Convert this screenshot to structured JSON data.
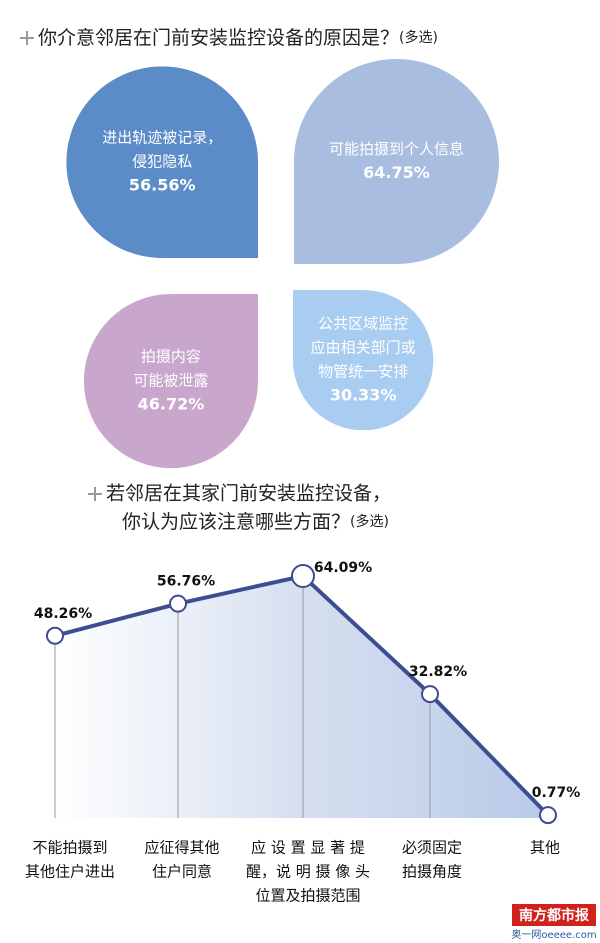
{
  "chart_data": [
    {
      "type": "leaf",
      "title": "你介意邻居在门前安装监控设备的原因是？",
      "title_note": "(多选)",
      "categories": [
        [
          "进出轨迹被记录，",
          "侵犯隐私"
        ],
        [
          "可能拍摄到个人信息"
        ],
        [
          "拍摄内容",
          "可能被泄露"
        ],
        [
          "公共区域监控",
          "应由相关部门或",
          "物管统一安排"
        ]
      ],
      "values": [
        56.56,
        64.75,
        46.72,
        30.33
      ],
      "value_labels": [
        "56.56%",
        "64.75%",
        "46.72%",
        "30.33%"
      ],
      "colors": [
        "#5b8cc8",
        "#a9bde0",
        "#c9a6cc",
        "#a8cdf0"
      ]
    },
    {
      "type": "line",
      "title": [
        "若邻居在其家门前安装监控设备，",
        "你认为应该注意哪些方面？"
      ],
      "title_note": "(多选)",
      "categories": [
        [
          "不能拍摄到",
          "其他住户进出"
        ],
        [
          "应征得其他",
          "住户同意"
        ],
        [
          "应 设 置 显 著 提",
          "醒，说 明 摄 像 头",
          "位置及拍摄范围"
        ],
        [
          "必须固定",
          "拍摄角度"
        ],
        [
          "其他"
        ]
      ],
      "values": [
        48.26,
        56.76,
        64.09,
        32.82,
        0.77
      ],
      "value_labels": [
        "48.26%",
        "56.76%",
        "64.09%",
        "32.82%",
        "0.77%"
      ],
      "color": "#3c4e90"
    }
  ],
  "footer": {
    "brand": "南方都市报",
    "site": "奥一网oeeee.com"
  }
}
